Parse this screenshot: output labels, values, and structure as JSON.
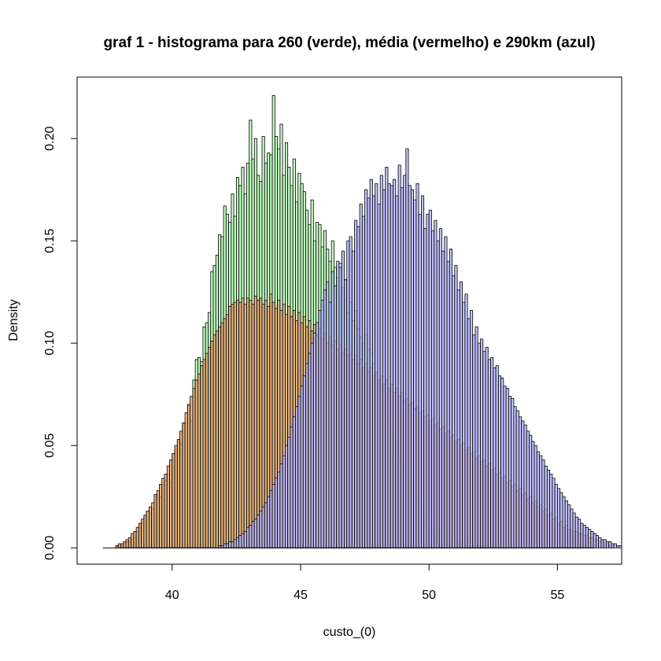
{
  "chart_data": {
    "type": "histogram",
    "title": "graf 1 - histograma para 260 (verde), média (vermelho) e 290km (azul)",
    "xlabel": "custo_(0)",
    "ylabel": "Density",
    "xlim": [
      36.3,
      57.5
    ],
    "ylim": [
      -0.008,
      0.23
    ],
    "x_ticks": [
      40,
      45,
      50,
      55
    ],
    "y_ticks": [
      0.0,
      0.05,
      0.1,
      0.15,
      0.2
    ],
    "y_tick_labels": [
      "0.00",
      "0.05",
      "0.10",
      "0.15",
      "0.20"
    ],
    "bin_width": 0.1,
    "baseline": {
      "x_start": 37.3,
      "x_end": 56.4
    },
    "series": [
      {
        "key": "verde",
        "color": "#B4FFB4",
        "bin_start": 37.8,
        "values": [
          0.001,
          0.001,
          0.001,
          0.002,
          0.003,
          0.003,
          0.004,
          0.005,
          0.008,
          0.01,
          0.012,
          0.015,
          0.018,
          0.017,
          0.019,
          0.025,
          0.026,
          0.025,
          0.031,
          0.033,
          0.036,
          0.032,
          0.046,
          0.048,
          0.052,
          0.051,
          0.061,
          0.061,
          0.07,
          0.062,
          0.082,
          0.092,
          0.093,
          0.091,
          0.108,
          0.11,
          0.115,
          0.135,
          0.138,
          0.143,
          0.153,
          0.152,
          0.167,
          0.163,
          0.159,
          0.173,
          0.162,
          0.181,
          0.177,
          0.186,
          0.173,
          0.188,
          0.209,
          0.19,
          0.2,
          0.182,
          0.179,
          0.201,
          0.188,
          0.193,
          0.192,
          0.221,
          0.201,
          0.195,
          0.207,
          0.182,
          0.198,
          0.186,
          0.177,
          0.19,
          0.169,
          0.183,
          0.178,
          0.174,
          0.165,
          0.158,
          0.17,
          0.15,
          0.159,
          0.158,
          0.147,
          0.155,
          0.146,
          0.14,
          0.15,
          0.137,
          0.132,
          0.139,
          0.127,
          0.131,
          0.115,
          0.12,
          0.111,
          0.116,
          0.107,
          0.103,
          0.1,
          0.104,
          0.097,
          0.095,
          0.09,
          0.085,
          0.08,
          0.078,
          0.07,
          0.066,
          0.063,
          0.058,
          0.054,
          0.05,
          0.045,
          0.041,
          0.038,
          0.034,
          0.03,
          0.028,
          0.025,
          0.023,
          0.02,
          0.018,
          0.016,
          0.015,
          0.013,
          0.012,
          0.01,
          0.009,
          0.008,
          0.007,
          0.006,
          0.005,
          0.004,
          0.004,
          0.003,
          0.003,
          0.002,
          0.002,
          0.002,
          0.001,
          0.001,
          0.001,
          0.001,
          0.001,
          0.001,
          0.001,
          0.001
        ]
      },
      {
        "key": "vermelho",
        "color": "#E8A070",
        "bin_start": 37.8,
        "values": [
          0.001,
          0.002,
          0.002,
          0.003,
          0.004,
          0.005,
          0.007,
          0.008,
          0.01,
          0.012,
          0.014,
          0.016,
          0.018,
          0.02,
          0.022,
          0.026,
          0.028,
          0.031,
          0.034,
          0.036,
          0.04,
          0.043,
          0.046,
          0.05,
          0.053,
          0.057,
          0.061,
          0.066,
          0.07,
          0.074,
          0.078,
          0.082,
          0.085,
          0.089,
          0.092,
          0.095,
          0.098,
          0.101,
          0.104,
          0.106,
          0.108,
          0.11,
          0.112,
          0.114,
          0.118,
          0.119,
          0.12,
          0.121,
          0.12,
          0.122,
          0.119,
          0.122,
          0.121,
          0.119,
          0.123,
          0.121,
          0.122,
          0.119,
          0.121,
          0.118,
          0.124,
          0.12,
          0.117,
          0.121,
          0.116,
          0.119,
          0.114,
          0.118,
          0.113,
          0.116,
          0.111,
          0.115,
          0.11,
          0.113,
          0.108,
          0.111,
          0.106,
          0.109,
          0.104,
          0.107,
          0.102,
          0.105,
          0.1,
          0.103,
          0.099,
          0.101,
          0.097,
          0.099,
          0.095,
          0.097,
          0.094,
          0.095,
          0.092,
          0.094,
          0.09,
          0.092,
          0.088,
          0.09,
          0.086,
          0.088,
          0.084,
          0.086,
          0.082,
          0.084,
          0.08,
          0.082,
          0.078,
          0.08,
          0.076,
          0.078,
          0.074,
          0.076,
          0.072,
          0.073,
          0.07,
          0.071,
          0.068,
          0.069,
          0.066,
          0.067,
          0.064,
          0.065,
          0.062,
          0.063,
          0.06,
          0.061,
          0.058,
          0.059,
          0.056,
          0.057,
          0.054,
          0.055,
          0.052,
          0.053,
          0.05,
          0.051,
          0.048,
          0.049,
          0.046,
          0.047,
          0.044,
          0.045,
          0.042,
          0.043,
          0.04,
          0.041,
          0.038,
          0.039,
          0.036,
          0.037,
          0.034,
          0.035,
          0.032,
          0.033,
          0.03,
          0.031,
          0.028,
          0.029,
          0.026,
          0.027,
          0.024,
          0.025,
          0.022,
          0.023,
          0.02,
          0.021,
          0.018,
          0.019,
          0.016,
          0.017,
          0.014,
          0.015,
          0.012,
          0.013,
          0.01,
          0.011,
          0.009,
          0.009,
          0.008,
          0.008,
          0.007,
          0.007,
          0.006,
          0.006,
          0.005,
          0.005,
          0.004,
          0.004,
          0.003,
          0.003,
          0.002,
          0.002,
          0.001,
          0.001
        ]
      },
      {
        "key": "azul",
        "color": "#B4B4FF",
        "bin_start": 41.8,
        "values": [
          0.001,
          0.001,
          0.002,
          0.002,
          0.003,
          0.003,
          0.004,
          0.005,
          0.006,
          0.007,
          0.008,
          0.01,
          0.011,
          0.013,
          0.014,
          0.016,
          0.018,
          0.02,
          0.022,
          0.025,
          0.028,
          0.031,
          0.034,
          0.037,
          0.041,
          0.045,
          0.05,
          0.054,
          0.059,
          0.064,
          0.069,
          0.074,
          0.079,
          0.084,
          0.09,
          0.095,
          0.1,
          0.105,
          0.11,
          0.116,
          0.121,
          0.126,
          0.13,
          0.12,
          0.135,
          0.128,
          0.14,
          0.137,
          0.145,
          0.131,
          0.15,
          0.152,
          0.145,
          0.16,
          0.157,
          0.168,
          0.162,
          0.175,
          0.171,
          0.18,
          0.172,
          0.178,
          0.168,
          0.182,
          0.175,
          0.186,
          0.178,
          0.177,
          0.18,
          0.172,
          0.187,
          0.176,
          0.182,
          0.195,
          0.177,
          0.175,
          0.17,
          0.178,
          0.163,
          0.172,
          0.156,
          0.163,
          0.165,
          0.155,
          0.16,
          0.15,
          0.156,
          0.145,
          0.152,
          0.14,
          0.146,
          0.133,
          0.138,
          0.126,
          0.13,
          0.12,
          0.124,
          0.112,
          0.116,
          0.104,
          0.108,
          0.1,
          0.102,
          0.096,
          0.098,
          0.092,
          0.093,
          0.088,
          0.089,
          0.084,
          0.083,
          0.079,
          0.078,
          0.074,
          0.073,
          0.069,
          0.067,
          0.064,
          0.062,
          0.06,
          0.057,
          0.055,
          0.052,
          0.05,
          0.047,
          0.045,
          0.043,
          0.04,
          0.038,
          0.036,
          0.034,
          0.031,
          0.029,
          0.027,
          0.025,
          0.023,
          0.021,
          0.019,
          0.017,
          0.015,
          0.014,
          0.012,
          0.011,
          0.01,
          0.009,
          0.008,
          0.007,
          0.006,
          0.005,
          0.004,
          0.004,
          0.003,
          0.003,
          0.002,
          0.002,
          0.001,
          0.001
        ]
      }
    ]
  }
}
